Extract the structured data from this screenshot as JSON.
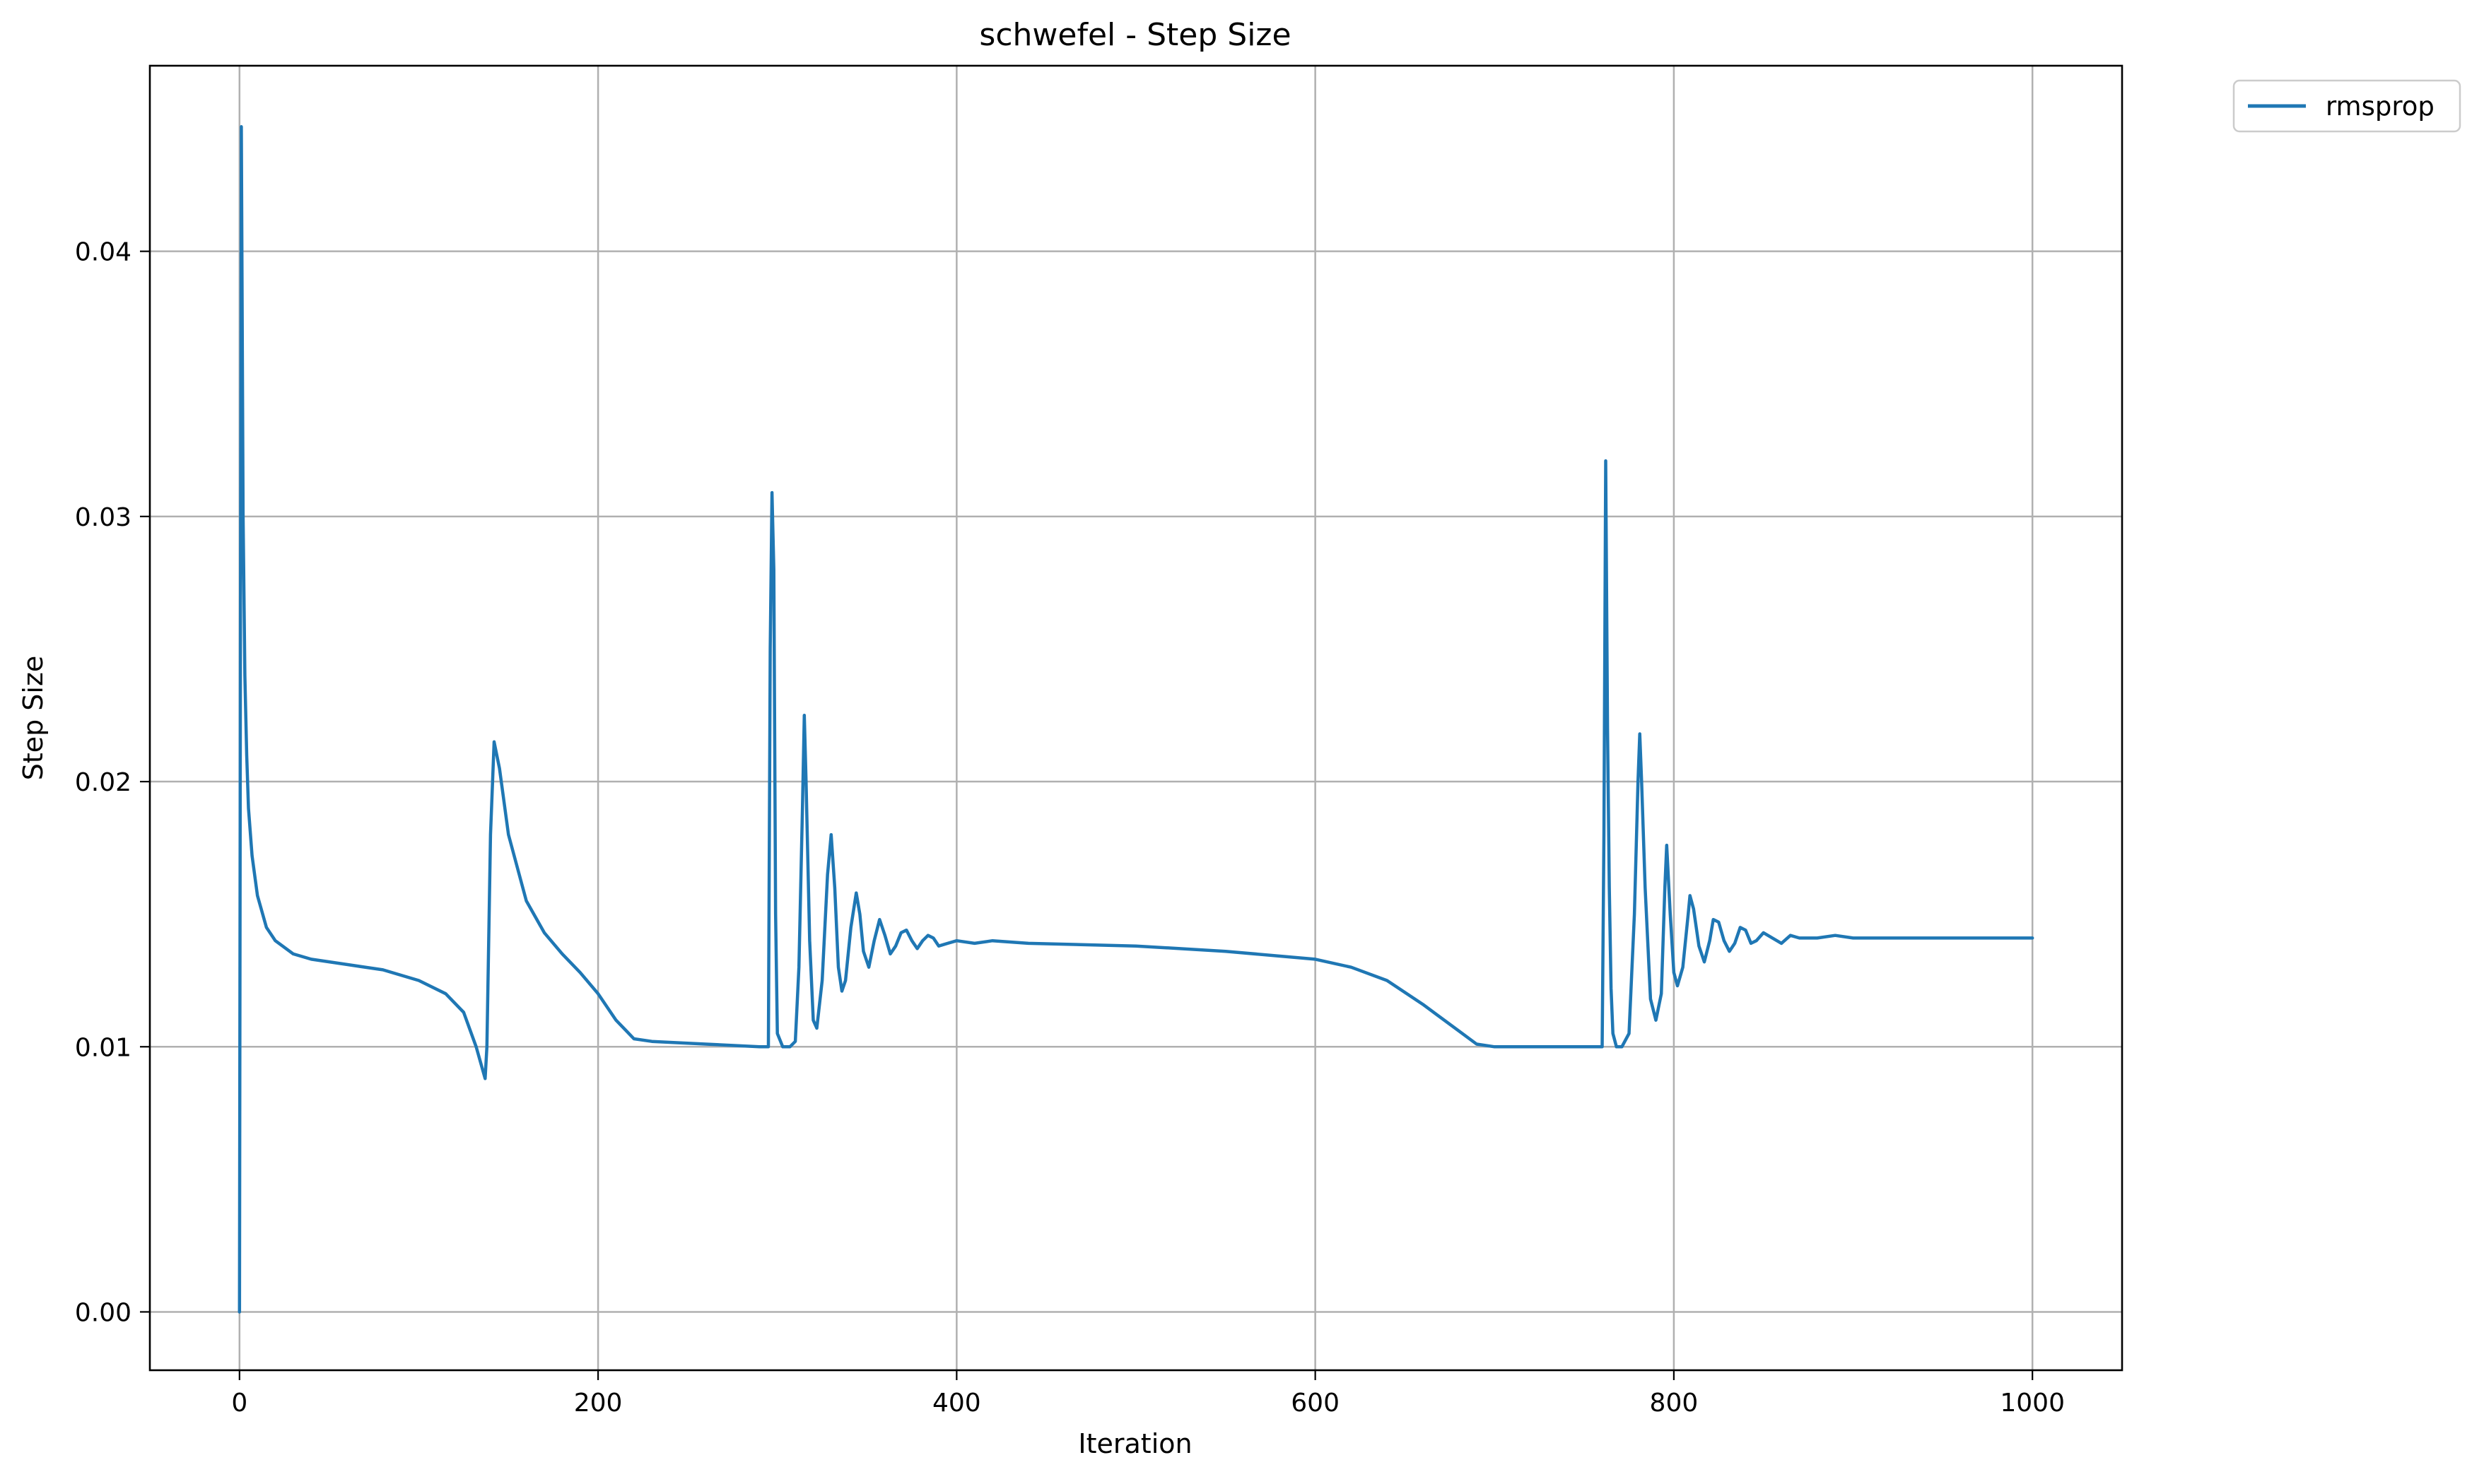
{
  "chart_data": {
    "type": "line",
    "title": "schwefel - Step Size",
    "xlabel": "Iteration",
    "ylabel": "Step Size",
    "xlim": [
      -50,
      1050
    ],
    "ylim": [
      -0.0022,
      0.047
    ],
    "xticks": [
      0,
      200,
      400,
      600,
      800,
      1000
    ],
    "xtick_labels": [
      "0",
      "200",
      "400",
      "600",
      "800",
      "1000"
    ],
    "yticks": [
      0.0,
      0.01,
      0.02,
      0.03,
      0.04
    ],
    "ytick_labels": [
      "0.00",
      "0.01",
      "0.02",
      "0.03",
      "0.04"
    ],
    "grid": true,
    "legend_position": "outside-top-right",
    "series": [
      {
        "name": "rmsprop",
        "color": "#1f77b4",
        "x": [
          0,
          0.5,
          1,
          2,
          3,
          4,
          5,
          7,
          10,
          15,
          20,
          30,
          40,
          60,
          80,
          100,
          115,
          125,
          132,
          137,
          138,
          140,
          142,
          145,
          150,
          160,
          170,
          180,
          190,
          200,
          210,
          220,
          230,
          260,
          290,
          295,
          296,
          297,
          298,
          299,
          300,
          303,
          307,
          310,
          312,
          314,
          315,
          316,
          318,
          320,
          322,
          325,
          328,
          330,
          332,
          334,
          336,
          338,
          341,
          344,
          346,
          348,
          351,
          354,
          357,
          360,
          363,
          366,
          369,
          372,
          375,
          378,
          381,
          384,
          387,
          390,
          395,
          400,
          410,
          420,
          440,
          500,
          550,
          600,
          620,
          640,
          660,
          680,
          690,
          700,
          720,
          740,
          760,
          761,
          762,
          763,
          764,
          765,
          766,
          768,
          771,
          775,
          778,
          780,
          781,
          782,
          784,
          787,
          790,
          793,
          795,
          796,
          798,
          800,
          802,
          805,
          808,
          809,
          811,
          814,
          817,
          820,
          822,
          825,
          828,
          831,
          834,
          837,
          840,
          843,
          846,
          850,
          855,
          860,
          865,
          870,
          880,
          890,
          900,
          920,
          950,
          1000
        ],
        "y": [
          0.0,
          0.025,
          0.0447,
          0.03,
          0.024,
          0.021,
          0.019,
          0.0172,
          0.0157,
          0.0145,
          0.014,
          0.0135,
          0.0133,
          0.0131,
          0.0129,
          0.0125,
          0.012,
          0.0113,
          0.01,
          0.0088,
          0.01,
          0.018,
          0.0215,
          0.0205,
          0.018,
          0.0155,
          0.0143,
          0.0135,
          0.0128,
          0.012,
          0.011,
          0.0103,
          0.0102,
          0.0101,
          0.01,
          0.01,
          0.025,
          0.0309,
          0.028,
          0.015,
          0.0105,
          0.01,
          0.01,
          0.0102,
          0.013,
          0.019,
          0.0225,
          0.02,
          0.014,
          0.011,
          0.0107,
          0.0125,
          0.0165,
          0.018,
          0.016,
          0.013,
          0.0121,
          0.0125,
          0.0145,
          0.0158,
          0.015,
          0.0136,
          0.013,
          0.014,
          0.0148,
          0.0142,
          0.0135,
          0.0138,
          0.0143,
          0.0144,
          0.014,
          0.0137,
          0.014,
          0.0142,
          0.0141,
          0.0138,
          0.0139,
          0.014,
          0.0139,
          0.014,
          0.0139,
          0.0138,
          0.0136,
          0.0133,
          0.013,
          0.0125,
          0.0116,
          0.0106,
          0.0101,
          0.01,
          0.01,
          0.01,
          0.01,
          0.018,
          0.0321,
          0.022,
          0.016,
          0.0122,
          0.0105,
          0.01,
          0.01,
          0.0105,
          0.015,
          0.02,
          0.0218,
          0.02,
          0.016,
          0.0118,
          0.011,
          0.012,
          0.016,
          0.0176,
          0.015,
          0.0128,
          0.0123,
          0.013,
          0.015,
          0.0157,
          0.0152,
          0.0138,
          0.0132,
          0.014,
          0.0148,
          0.0147,
          0.014,
          0.0136,
          0.0139,
          0.0145,
          0.0144,
          0.0139,
          0.014,
          0.0143,
          0.0141,
          0.0139,
          0.0142,
          0.0141,
          0.0141,
          0.0142,
          0.0141,
          0.0141,
          0.0141,
          0.0141
        ]
      }
    ]
  }
}
